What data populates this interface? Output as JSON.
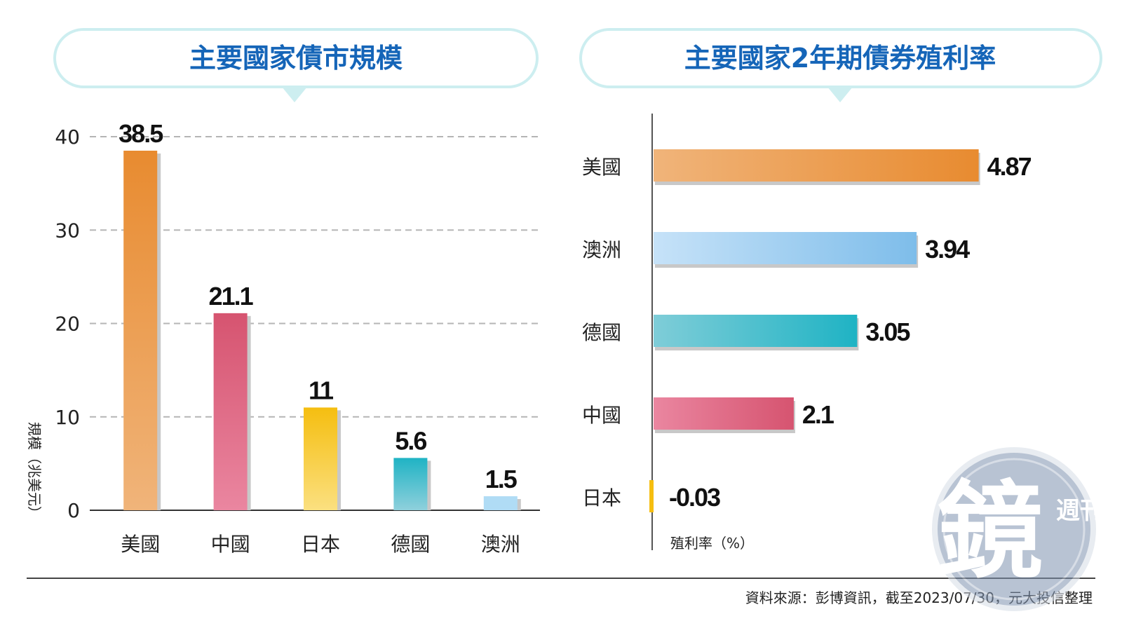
{
  "source_note": "資料來源：彭博資訊，截至2023/07/30，元大投信整理",
  "chart_data": [
    {
      "type": "bar",
      "title": "主要國家債市規模",
      "ylabel": "規模（兆美元）",
      "xlabel": "",
      "ylim": [
        0,
        40
      ],
      "yticks": [
        "0",
        "10",
        "20",
        "30",
        "40"
      ],
      "categories": [
        "美國",
        "中國",
        "日本",
        "德國",
        "澳洲"
      ],
      "values": [
        38.5,
        21.1,
        11,
        5.6,
        1.5
      ],
      "value_labels": [
        "38.5",
        "21.1",
        "11",
        "5.6",
        "1.5"
      ],
      "colors": [
        [
          "#f0b47a",
          "#e88b30"
        ],
        [
          "#ea86a0",
          "#d65470"
        ],
        [
          "#fbe080",
          "#f5be10"
        ],
        [
          "#8fd0dc",
          "#1fb3c4"
        ],
        [
          "#b0dcf5",
          "#b0dcf5"
        ]
      ],
      "grid": true
    },
    {
      "type": "bar-horizontal",
      "title": "主要國家2年期債券殖利率",
      "xlabel": "殖利率（%）",
      "categories": [
        "美國",
        "澳洲",
        "德國",
        "中國",
        "日本"
      ],
      "values": [
        4.87,
        3.94,
        3.05,
        2.1,
        -0.03
      ],
      "value_labels": [
        "4.87",
        "3.94",
        "3.05",
        "2.1",
        "-0.03"
      ],
      "colors": [
        [
          "#f0b47a",
          "#e88b30"
        ],
        [
          "#c6e2f8",
          "#7ebdea"
        ],
        [
          "#7fcdd8",
          "#1fb3c4"
        ],
        [
          "#ea86a0",
          "#d65470"
        ],
        [
          "#f5be10",
          "#f5be10"
        ]
      ],
      "grid": false
    }
  ],
  "watermark": {
    "main_char": "鏡",
    "side_text": "週刊"
  }
}
